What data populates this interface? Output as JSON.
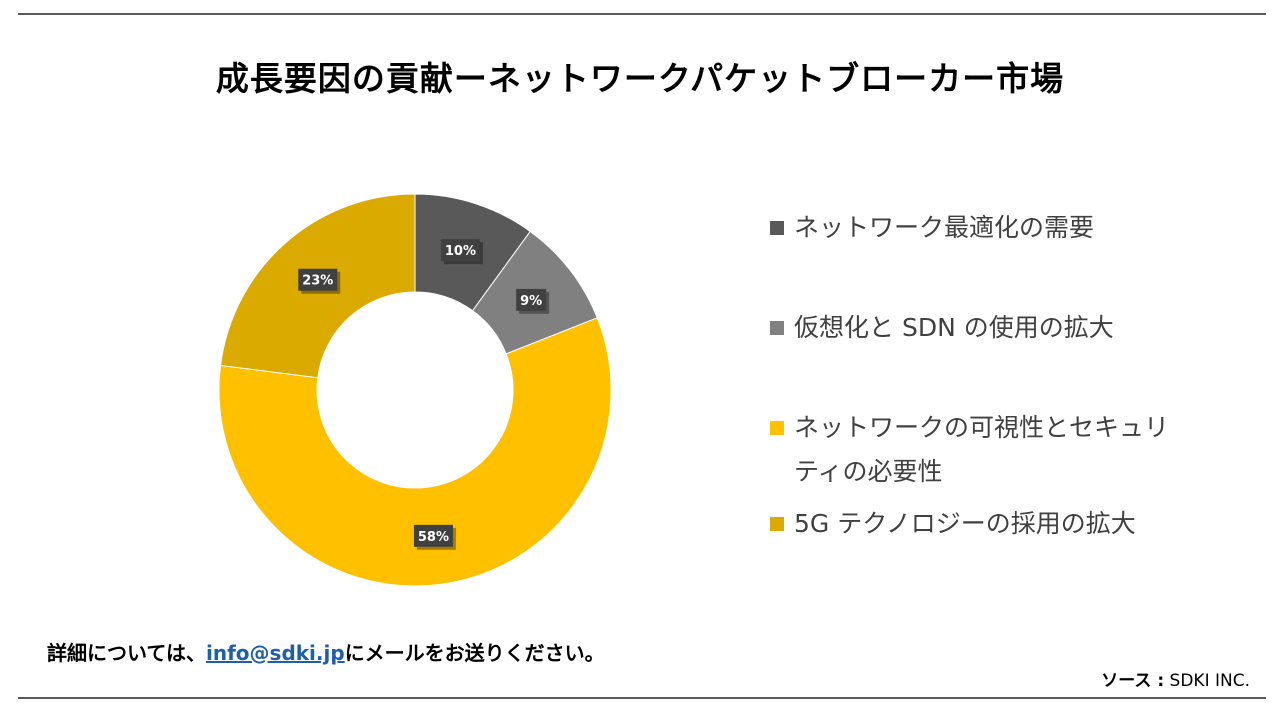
{
  "title": "成長要因の貢献ーネットワークパケットブローカー市場",
  "chart_data": {
    "type": "pie",
    "variant": "donut",
    "title": "成長要因の貢献ーネットワークパケットブローカー市場",
    "categories": [
      "ネットワーク最適化の需要",
      "仮想化と SDN の使用の拡大",
      "ネットワークの可視性とセキュリティの必要性",
      "5G テクノロジーの採用の拡大"
    ],
    "values": [
      10,
      9,
      58,
      23
    ],
    "value_labels": [
      "10%",
      "9%",
      "58%",
      "23%"
    ],
    "colors": [
      "#595959",
      "#808080",
      "#ffc000",
      "#dbaa00"
    ],
    "legend_position": "right"
  },
  "legend": {
    "items": [
      {
        "label": "ネットワーク最適化の需要",
        "color": "#595959"
      },
      {
        "label": "仮想化と SDN の使用の拡大",
        "color": "#808080"
      },
      {
        "label": "ネットワークの可視性とセキュリティの必要性",
        "color": "#ffc000"
      },
      {
        "label": "5G テクノロジーの採用の拡大",
        "color": "#dbaa00"
      }
    ]
  },
  "footer": {
    "contact_prefix": "詳細については、",
    "email": "info@sdki.jp",
    "contact_suffix": "にメールをお送りください。",
    "source_label": "ソース  :",
    "source_value": "SDKI INC."
  }
}
